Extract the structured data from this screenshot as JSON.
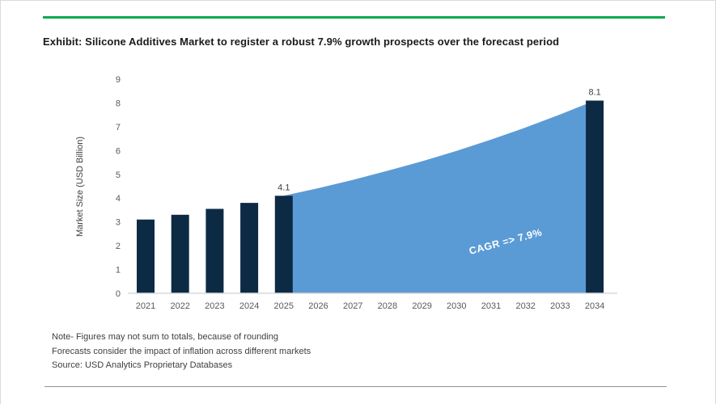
{
  "title": "Exhibit: Silicone Additives Market to register a robust 7.9% growth prospects over the forecast period",
  "notes": [
    "Note- Figures may not sum to totals, because of rounding",
    "Forecasts consider the impact of inflation across different markets",
    "Source: USD Analytics Proprietary Databases"
  ],
  "colors": {
    "accent_line": "#0ba84f",
    "bar": "#0d2a45",
    "area": "#5b9bd5",
    "axis_line": "#d9d9d9",
    "tick_text": "#595959",
    "label_text": "#404040",
    "divider": "#919191"
  },
  "chart_data": {
    "type": "bar",
    "subtype": "combo-bar-area",
    "title": "Exhibit: Silicone Additives Market to register a robust 7.9% growth prospects over the forecast period",
    "xlabel": "",
    "ylabel": "Market Size (USD Billion)",
    "ylim": [
      0,
      9
    ],
    "ytick_step": 1,
    "grid": false,
    "legend": "none",
    "categories": [
      "2021",
      "2022",
      "2023",
      "2024",
      "2025",
      "2026",
      "2027",
      "2028",
      "2029",
      "2030",
      "2031",
      "2032",
      "2033",
      "2034"
    ],
    "series": [
      {
        "name": "Market size (bars)",
        "type": "bar",
        "color": "#0d2a45",
        "values": [
          3.1,
          3.3,
          3.55,
          3.8,
          4.1,
          null,
          null,
          null,
          null,
          null,
          null,
          null,
          null,
          8.1
        ]
      },
      {
        "name": "Forecast growth (area)",
        "type": "area",
        "color": "#5b9bd5",
        "values": [
          null,
          null,
          null,
          null,
          4.1,
          4.42,
          4.77,
          5.15,
          5.55,
          5.99,
          6.46,
          6.97,
          7.52,
          8.1
        ]
      }
    ],
    "point_labels": [
      {
        "category": "2025",
        "text": "4.1"
      },
      {
        "category": "2034",
        "text": "8.1"
      }
    ],
    "annotation": {
      "text": "CAGR =>  7.9%",
      "color": "#ffffff",
      "rotation_deg": -15
    }
  }
}
